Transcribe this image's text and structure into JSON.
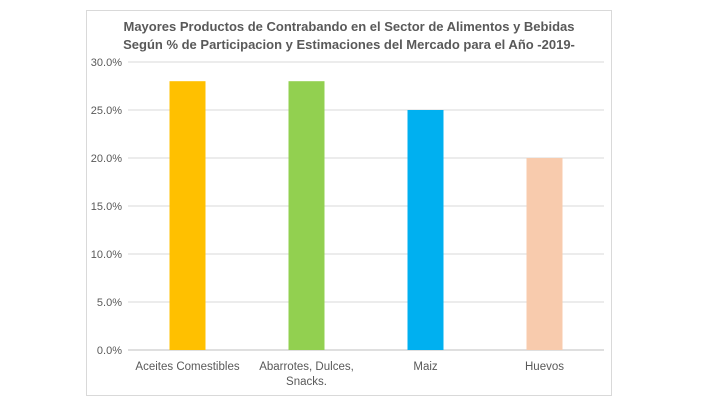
{
  "chart_data": {
    "type": "bar",
    "title_lines": [
      "Mayores Productos de Contrabando en el Sector de Alimentos y Bebidas",
      "Según % de Participacion y Estimaciones del Mercado para el Año -2019-"
    ],
    "categories": [
      [
        "Aceites Comestibles"
      ],
      [
        "Abarrotes, Dulces,",
        "Snacks."
      ],
      [
        "Maiz"
      ],
      [
        "Huevos"
      ]
    ],
    "values": [
      0.28,
      0.28,
      0.25,
      0.2
    ],
    "bar_colors": [
      "#ffc000",
      "#92d050",
      "#00b0f0",
      "#f8cbad"
    ],
    "ylim": [
      0,
      0.3
    ],
    "yticks": [
      0,
      0.05,
      0.1,
      0.15,
      0.2,
      0.25,
      0.3
    ],
    "ytick_labels": [
      "0.0%",
      "5.0%",
      "10.0%",
      "15.0%",
      "20.0%",
      "25.0%",
      "30.0%"
    ],
    "grid": true,
    "legend": "none"
  }
}
